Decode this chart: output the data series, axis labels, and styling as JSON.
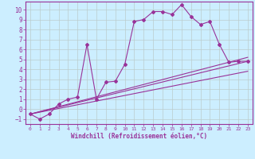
{
  "xlabel": "Windchill (Refroidissement éolien,°C)",
  "background_color": "#cceeff",
  "line_color": "#993399",
  "grid_color": "#bbcccc",
  "xlim": [
    -0.5,
    23.5
  ],
  "ylim": [
    -1.5,
    10.8
  ],
  "xticks": [
    0,
    1,
    2,
    3,
    4,
    5,
    6,
    7,
    8,
    9,
    10,
    11,
    12,
    13,
    14,
    15,
    16,
    17,
    18,
    19,
    20,
    21,
    22,
    23
  ],
  "yticks": [
    -1,
    0,
    1,
    2,
    3,
    4,
    5,
    6,
    7,
    8,
    9,
    10
  ],
  "main_x": [
    0,
    1,
    2,
    3,
    4,
    5,
    6,
    7,
    8,
    9,
    10,
    11,
    12,
    13,
    14,
    15,
    16,
    17,
    18,
    19,
    20,
    21,
    22,
    23
  ],
  "main_y": [
    -0.5,
    -1.0,
    -0.5,
    0.5,
    1.0,
    1.2,
    6.5,
    1.0,
    2.7,
    2.8,
    4.5,
    8.8,
    9.0,
    9.8,
    9.8,
    9.5,
    10.5,
    9.3,
    8.5,
    8.8,
    6.5,
    4.7,
    4.8,
    4.8
  ],
  "line1_x": [
    0,
    23
  ],
  "line1_y": [
    -0.5,
    4.8
  ],
  "line2_x": [
    0,
    23
  ],
  "line2_y": [
    -0.5,
    5.2
  ],
  "line3_x": [
    0,
    23
  ],
  "line3_y": [
    -0.5,
    3.8
  ]
}
